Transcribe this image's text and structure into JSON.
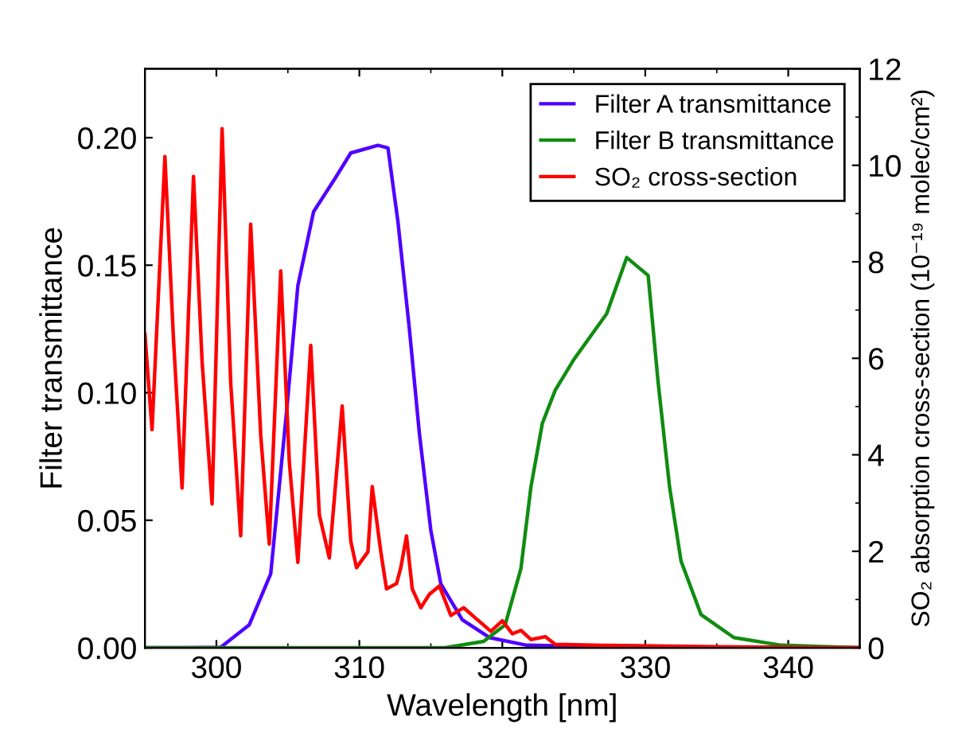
{
  "chart_data": {
    "type": "line",
    "xlabel": "Wavelength [nm]",
    "ylabel": "Filter transmittance",
    "y2label": "SO₂ absorption cross-section (10⁻¹⁹ molec/cm²)",
    "xlim": [
      295,
      345
    ],
    "xticks": [
      300,
      310,
      320,
      330,
      340
    ],
    "ylim": [
      0,
      0.227
    ],
    "yticks": [
      {
        "value": 0,
        "label": "0.00"
      },
      {
        "value": 0.05,
        "label": "0.05"
      },
      {
        "value": 0.1,
        "label": "0.10"
      },
      {
        "value": 0.15,
        "label": "0.15"
      },
      {
        "value": 0.2,
        "label": "0.20"
      }
    ],
    "y2lim": [
      0,
      12
    ],
    "y2ticks": [
      0,
      2,
      4,
      6,
      8,
      10,
      12
    ],
    "grid": false,
    "legend": "top right",
    "marker": "none",
    "line_style": "solid",
    "series": [
      {
        "name": "Filter A transmittance",
        "color": "#5000ff",
        "x": [
          295,
          298,
          300.3,
          302.3,
          303.8,
          304.9,
          305.7,
          306.8,
          308.3,
          309.4,
          311.3,
          312.0,
          312.7,
          313.5,
          314.2,
          315.0,
          315.7,
          317.2,
          319.1,
          321.7,
          330,
          345
        ],
        "values": [
          0,
          0,
          0.0002,
          0.009,
          0.029,
          0.092,
          0.142,
          0.171,
          0.184,
          0.194,
          0.197,
          0.196,
          0.167,
          0.125,
          0.084,
          0.046,
          0.025,
          0.011,
          0.004,
          0.001,
          0,
          0
        ]
      },
      {
        "name": "Filter B transmittance",
        "color": "#108c10",
        "x": [
          295,
          316,
          318.7,
          320.2,
          321.3,
          322.0,
          322.8,
          323.7,
          325.0,
          327.3,
          328.7,
          330.2,
          330.9,
          331.7,
          332.5,
          333.9,
          336.2,
          339.5,
          345
        ],
        "values": [
          0,
          0,
          0.0025,
          0.009,
          0.031,
          0.063,
          0.088,
          0.101,
          0.113,
          0.131,
          0.153,
          0.146,
          0.104,
          0.063,
          0.034,
          0.013,
          0.004,
          0.001,
          0
        ]
      },
      {
        "name": "SO₂ cross-section",
        "color": "#ff0000",
        "axis": "y2",
        "x": [
          295.0,
          295.5,
          296.4,
          297.0,
          297.6,
          298.4,
          299.0,
          299.7,
          300.4,
          301.0,
          301.7,
          302.4,
          303.1,
          303.7,
          304.5,
          305.1,
          305.7,
          306.6,
          307.2,
          307.9,
          308.8,
          309.4,
          309.8,
          310.6,
          310.9,
          311.5,
          311.9,
          312.6,
          312.9,
          313.3,
          313.7,
          314.3,
          314.9,
          315.6,
          316.4,
          317.3,
          318.1,
          319.2,
          320.0,
          320.7,
          321.3,
          322.0,
          323.0,
          323.7,
          327,
          335,
          345
        ],
        "values": [
          6.5,
          4.52,
          10.18,
          6.39,
          3.31,
          9.77,
          5.94,
          2.98,
          10.76,
          5.5,
          2.32,
          8.78,
          4.41,
          2.15,
          7.81,
          3.86,
          1.77,
          6.27,
          2.76,
          1.86,
          5.01,
          2.21,
          1.66,
          1.99,
          3.34,
          1.99,
          1.22,
          1.33,
          1.66,
          2.32,
          1.22,
          0.83,
          1.11,
          1.28,
          0.67,
          0.83,
          0.62,
          0.34,
          0.56,
          0.29,
          0.36,
          0.17,
          0.23,
          0.07,
          0.05,
          0.02,
          0
        ]
      }
    ]
  }
}
